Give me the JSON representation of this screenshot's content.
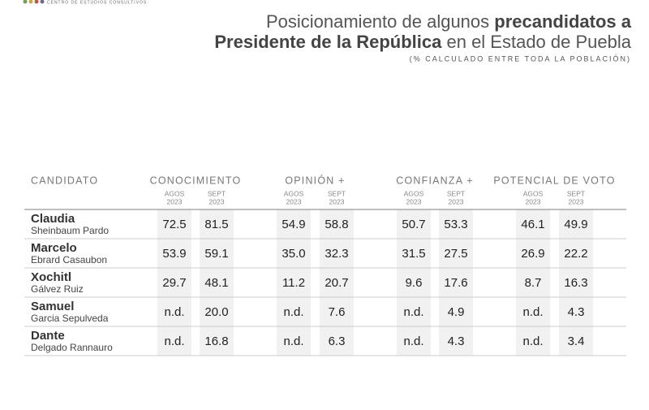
{
  "header": {
    "logo": "CENTRO DE ESTUDIOS CONSULTIVOS",
    "title": {
      "line1": [
        "Posicionamiento de algunos",
        "precandidatos a"
      ],
      "line2": [
        "Presidente de la República",
        "en el Estado de Puebla"
      ]
    },
    "subtitle": "(% CALCULADO ENTRE TODA LA POBLACIÓN)"
  },
  "table": {
    "candidate_header": "CANDIDATO",
    "groups": [
      {
        "name": "CONOCIMIENTO",
        "periods": [
          {
            "month": "AGOS",
            "year": "2023"
          },
          {
            "month": "SEPT",
            "year": "2023"
          }
        ]
      },
      {
        "name": "OPINIÓN +",
        "periods": [
          {
            "month": "AGOS",
            "year": "2023"
          },
          {
            "month": "SEPT",
            "year": "2023"
          }
        ]
      },
      {
        "name": "CONFIANZA +",
        "periods": [
          {
            "month": "AGOS",
            "year": "2023"
          },
          {
            "month": "SEPT",
            "year": "2023"
          }
        ]
      },
      {
        "name": "POTENCIAL DE VOTO",
        "periods": [
          {
            "month": "AGOS",
            "year": "2023"
          },
          {
            "month": "SEPT",
            "year": "2023"
          }
        ]
      }
    ],
    "rows": [
      {
        "first": "Claudia",
        "last": "Sheinbaum Pardo",
        "values": [
          "72.5",
          "81.5",
          "54.9",
          "58.8",
          "50.7",
          "53.3",
          "46.1",
          "49.9"
        ]
      },
      {
        "first": "Marcelo",
        "last": "Ebrard Casaubon",
        "values": [
          "53.9",
          "59.1",
          "35.0",
          "32.3",
          "31.5",
          "27.5",
          "26.9",
          "22.2"
        ]
      },
      {
        "first": "Xochitl",
        "last": "Gálvez Ruiz",
        "values": [
          "29.7",
          "48.1",
          "11.2",
          "20.7",
          "9.6",
          "17.6",
          "8.7",
          "16.3"
        ]
      },
      {
        "first": "Samuel",
        "last": "Garcia Sepulveda",
        "values": [
          "n.d.",
          "20.0",
          "n.d.",
          "7.6",
          "n.d.",
          "4.9",
          "n.d.",
          "4.3"
        ]
      },
      {
        "first": "Dante",
        "last": "Delgado Rannauro",
        "values": [
          "n.d.",
          "16.8",
          "n.d.",
          "6.3",
          "n.d.",
          "4.3",
          "n.d.",
          "3.4"
        ]
      }
    ]
  }
}
